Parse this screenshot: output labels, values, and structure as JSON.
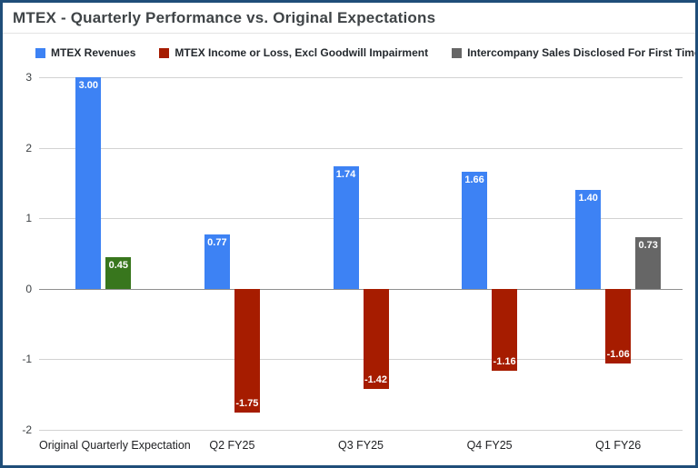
{
  "page": {
    "title": "MTEX - Quarterly Performance vs. Original Expectations"
  },
  "theme": {
    "frame_border": "#1f4e79",
    "revenue_blue": "#3d82f4",
    "loss_red": "#a61c00",
    "expectation_green": "#38761d",
    "intercompany_gray": "#666666"
  },
  "chart_data": {
    "type": "bar",
    "title": "MTEX - Quarterly Performance vs. Original Expectations",
    "categories": [
      "Original Quarterly Expectation",
      "Q2 FY25",
      "Q3 FY25",
      "Q4 FY25",
      "Q1 FY26"
    ],
    "series": [
      {
        "name": "MTEX Revenues",
        "color": "#3d82f4",
        "values": [
          3.0,
          0.77,
          1.74,
          1.66,
          1.4
        ]
      },
      {
        "name": "MTEX Income or Loss, Excl Goodwill Impairment",
        "color": "#a61c00",
        "values": [
          0.45,
          -1.75,
          -1.42,
          -1.16,
          -1.06
        ],
        "point_colors": [
          "#38761d",
          null,
          null,
          null,
          null
        ]
      },
      {
        "name": "Intercompany Sales Disclosed For First Time - ?????",
        "color": "#666666",
        "values": [
          null,
          null,
          null,
          null,
          0.73
        ]
      }
    ],
    "ylim": [
      -2,
      3
    ],
    "yticks": [
      3,
      2,
      1,
      0,
      -1,
      -2
    ],
    "grid": true,
    "legend_position": "top",
    "value_label_decimals": 2
  }
}
